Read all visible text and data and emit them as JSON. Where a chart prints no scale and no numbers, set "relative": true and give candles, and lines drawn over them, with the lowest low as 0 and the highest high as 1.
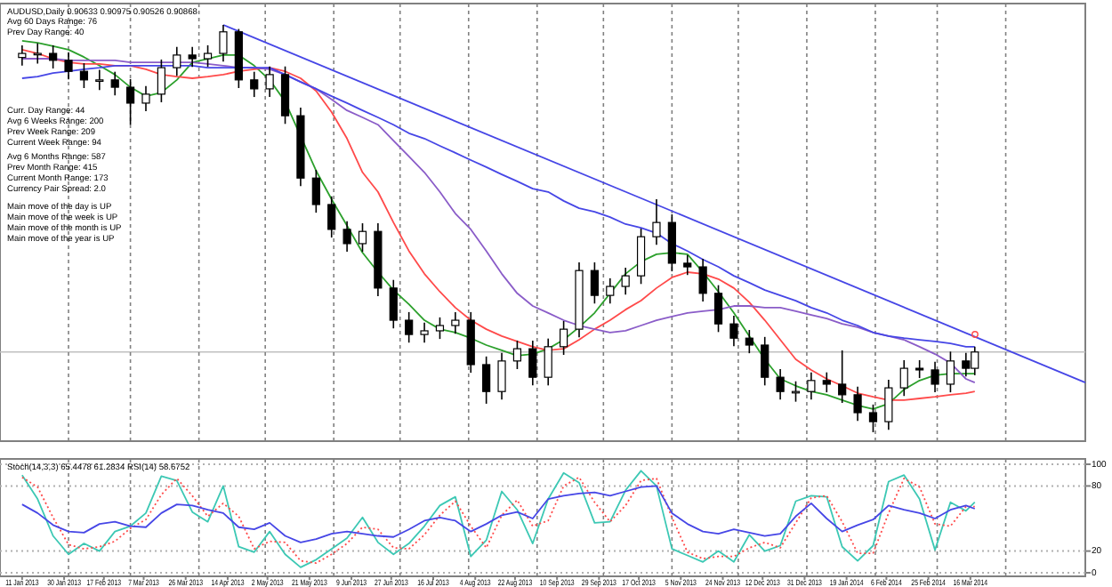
{
  "chart_data": [
    {
      "type": "candlestick",
      "title": "AUDUSD,Daily  0.90633 0.90975 0.90526 0.90868",
      "annotations": [
        "Avg 60 Days Range: 76",
        "Prev Day Range: 40",
        "Curr. Day Range: 44",
        "Avg 6 Weeks Range: 200",
        "Prev Week Range: 209",
        "Current Week Range: 94",
        "Avg 6 Months Range: 587",
        "Prev Month Range: 415",
        "Current Month Range: 173",
        "Currency Pair Spread: 2.0",
        "Main move of the day is UP",
        "Main move of the week is UP",
        "Main move of the month is UP",
        "Main move of the year is UP"
      ],
      "relative": true,
      "xlim": [
        "2013-01-01",
        "2014-05-07"
      ],
      "x": [
        "2013-01-11",
        "2013-01-18",
        "2013-01-25",
        "2013-02-01",
        "2013-02-08",
        "2013-02-15",
        "2013-02-22",
        "2013-03-01",
        "2013-03-08",
        "2013-03-15",
        "2013-03-22",
        "2013-03-29",
        "2013-04-05",
        "2013-04-12",
        "2013-04-19",
        "2013-04-26",
        "2013-05-03",
        "2013-05-10",
        "2013-05-17",
        "2013-05-24",
        "2013-05-31",
        "2013-06-07",
        "2013-06-14",
        "2013-06-21",
        "2013-06-28",
        "2013-07-05",
        "2013-07-12",
        "2013-07-19",
        "2013-07-26",
        "2013-08-02",
        "2013-08-09",
        "2013-08-16",
        "2013-08-23",
        "2013-08-30",
        "2013-09-06",
        "2013-09-13",
        "2013-09-20",
        "2013-09-27",
        "2013-10-04",
        "2013-10-11",
        "2013-10-18",
        "2013-10-25",
        "2013-11-01",
        "2013-11-08",
        "2013-11-15",
        "2013-11-22",
        "2013-11-29",
        "2013-12-06",
        "2013-12-13",
        "2013-12-20",
        "2013-12-27",
        "2014-01-03",
        "2014-01-10",
        "2014-01-17",
        "2014-01-24",
        "2014-01-31",
        "2014-02-07",
        "2014-02-14",
        "2014-02-21",
        "2014-02-28",
        "2014-03-07",
        "2014-03-14",
        "2014-03-18"
      ],
      "ohlc": [
        [
          0.92,
          0.95,
          0.9,
          0.93
        ],
        [
          0.93,
          0.955,
          0.905,
          0.93
        ],
        [
          0.93,
          0.95,
          0.893,
          0.913
        ],
        [
          0.913,
          0.933,
          0.866,
          0.886
        ],
        [
          0.886,
          0.906,
          0.845,
          0.865
        ],
        [
          0.865,
          0.89,
          0.84,
          0.865
        ],
        [
          0.865,
          0.885,
          0.827,
          0.847
        ],
        [
          0.847,
          0.867,
          0.755,
          0.808
        ],
        [
          0.808,
          0.85,
          0.788,
          0.83
        ],
        [
          0.83,
          0.915,
          0.81,
          0.895
        ],
        [
          0.895,
          0.946,
          0.875,
          0.926
        ],
        [
          0.926,
          0.946,
          0.897,
          0.917
        ],
        [
          0.917,
          0.95,
          0.897,
          0.93
        ],
        [
          0.93,
          1.0,
          0.91,
          0.983
        ],
        [
          0.983,
          0.99,
          0.845,
          0.865
        ],
        [
          0.865,
          0.885,
          0.823,
          0.843
        ],
        [
          0.843,
          0.898,
          0.823,
          0.878
        ],
        [
          0.878,
          0.898,
          0.757,
          0.777
        ],
        [
          0.777,
          0.797,
          0.604,
          0.624
        ],
        [
          0.624,
          0.644,
          0.539,
          0.559
        ],
        [
          0.559,
          0.579,
          0.478,
          0.498
        ],
        [
          0.498,
          0.518,
          0.443,
          0.463
        ],
        [
          0.463,
          0.513,
          0.443,
          0.493
        ],
        [
          0.493,
          0.513,
          0.334,
          0.354
        ],
        [
          0.354,
          0.374,
          0.255,
          0.275
        ],
        [
          0.275,
          0.295,
          0.22,
          0.24
        ],
        [
          0.24,
          0.269,
          0.22,
          0.249
        ],
        [
          0.249,
          0.282,
          0.229,
          0.262
        ],
        [
          0.262,
          0.295,
          0.242,
          0.275
        ],
        [
          0.275,
          0.295,
          0.146,
          0.166
        ],
        [
          0.166,
          0.186,
          0.07,
          0.1
        ],
        [
          0.1,
          0.195,
          0.08,
          0.175
        ],
        [
          0.175,
          0.225,
          0.155,
          0.205
        ],
        [
          0.205,
          0.225,
          0.115,
          0.135
        ],
        [
          0.135,
          0.23,
          0.115,
          0.21
        ],
        [
          0.21,
          0.273,
          0.19,
          0.253
        ],
        [
          0.253,
          0.417,
          0.233,
          0.397
        ],
        [
          0.397,
          0.417,
          0.316,
          0.336
        ],
        [
          0.336,
          0.378,
          0.316,
          0.358
        ],
        [
          0.358,
          0.404,
          0.338,
          0.384
        ],
        [
          0.384,
          0.5,
          0.364,
          0.48
        ],
        [
          0.48,
          0.572,
          0.46,
          0.515
        ],
        [
          0.515,
          0.535,
          0.395,
          0.415
        ],
        [
          0.415,
          0.435,
          0.386,
          0.406
        ],
        [
          0.406,
          0.426,
          0.321,
          0.341
        ],
        [
          0.341,
          0.361,
          0.246,
          0.266
        ],
        [
          0.266,
          0.286,
          0.211,
          0.231
        ],
        [
          0.231,
          0.251,
          0.194,
          0.214
        ],
        [
          0.214,
          0.234,
          0.115,
          0.135
        ],
        [
          0.135,
          0.155,
          0.08,
          0.1
        ],
        [
          0.1,
          0.125,
          0.075,
          0.1
        ],
        [
          0.1,
          0.147,
          0.08,
          0.127
        ],
        [
          0.127,
          0.147,
          0.098,
          0.118
        ],
        [
          0.118,
          0.201,
          0.072,
          0.092
        ],
        [
          0.092,
          0.112,
          0.028,
          0.048
        ],
        [
          0.048,
          0.068,
          0,
          0.026
        ],
        [
          0.026,
          0.129,
          0.006,
          0.109
        ],
        [
          0.109,
          0.177,
          0.089,
          0.157
        ],
        [
          0.157,
          0.177,
          0.133,
          0.153
        ],
        [
          0.153,
          0.173,
          0.098,
          0.118
        ],
        [
          0.118,
          0.198,
          0.098,
          0.175
        ],
        [
          0.175,
          0.195,
          0.137,
          0.157
        ],
        [
          0.157,
          0.21,
          0.14,
          0.197
        ]
      ],
      "series": [
        {
          "type": "line",
          "color": "#2ca02c",
          "values": [
            0.961,
            0.956,
            0.948,
            0.939,
            0.921,
            0.9,
            0.878,
            0.847,
            0.825,
            0.834,
            0.865,
            0.908,
            0.917,
            0.926,
            0.926,
            0.9,
            0.865,
            0.812,
            null,
            0.642,
            0.572,
            0.507,
            0.441,
            0.393,
            0.349,
            0.314,
            0.275,
            0.253,
            0.245,
            0.231,
            0.214,
            0.201,
            0.188,
            0.192,
            0.205,
            0.227,
            0.258,
            0.293,
            0.341,
            0.389,
            0.419,
            0.437,
            0.441,
            0.437,
            0.393,
            0.345,
            0.293,
            0.236,
            0.179,
            0.131,
            0.114,
            0.1,
            0.092,
            0.079,
            0.066,
            0.057,
            0.07,
            0.105,
            0.127,
            0.14,
            0.144,
            0.144,
            0.144
          ]
        },
        {
          "type": "line",
          "color": "#ff4a4a",
          "values": [
            0.939,
            0.93,
            0.917,
            0.908,
            0.904,
            0.904,
            0.9,
            0.9,
            0.891,
            0.878,
            0.873,
            0.869,
            0.873,
            0.878,
            0.886,
            0.891,
            0.895,
            0.886,
            0.869,
            0.838,
            0.786,
            0.721,
            0.638,
            0.59,
            0.515,
            0.445,
            0.389,
            0.345,
            0.306,
            0.275,
            0.253,
            0.236,
            0.223,
            0.21,
            0.201,
            0.205,
            0.227,
            0.253,
            0.275,
            0.301,
            0.323,
            0.354,
            0.38,
            0.393,
            0.389,
            0.376,
            0.354,
            0.319,
            0.275,
            0.227,
            0.179,
            0.153,
            0.131,
            0.114,
            0.096,
            0.087,
            0.079,
            0.079,
            0.083,
            0.087,
            0.092,
            0.096,
            0.1
          ]
        },
        {
          "type": "line",
          "color": "#8a5cc8",
          "values": [
            0.917,
            0.917,
            0.917,
            0.913,
            0.913,
            0.913,
            0.913,
            0.908,
            0.908,
            0.908,
            0.908,
            0.908,
            0.904,
            0.9,
            0.895,
            0.895,
            0.891,
            0.878,
            0.86,
            0.843,
            0.817,
            0.79,
            0.773,
            0.755,
            0.716,
            0.677,
            0.638,
            0.59,
            0.537,
            0.498,
            0.445,
            0.389,
            0.341,
            0.31,
            0.293,
            0.275,
            0.262,
            0.253,
            0.245,
            0.249,
            0.262,
            0.275,
            0.284,
            0.293,
            0.297,
            0.301,
            0.31,
            0.31,
            0.306,
            0.306,
            0.297,
            0.288,
            0.279,
            0.266,
            0.258,
            0.245,
            0.236,
            0.227,
            0.21,
            0.192,
            0.17,
            0.131,
            0.122
          ]
        },
        {
          "type": "line",
          "color": "#4646e6",
          "values": [
            0.869,
            0.873,
            0.882,
            0.886,
            0.891,
            0.895,
            0.9,
            0.9,
            0.9,
            0.9,
            0.9,
            0.9,
            0.895,
            0.895,
            0.895,
            0.895,
            0.895,
            0.878,
            0.86,
            0.843,
            0.825,
            0.808,
            0.79,
            0.773,
            0.755,
            0.734,
            0.721,
            0.703,
            0.686,
            0.668,
            0.651,
            0.633,
            0.616,
            0.598,
            0.59,
            0.568,
            0.55,
            0.541,
            0.528,
            0.511,
            0.502,
            0.489,
            0.463,
            0.445,
            0.424,
            0.406,
            0.384,
            0.367,
            0.349,
            0.336,
            0.323,
            0.306,
            0.293,
            0.275,
            0.262,
            0.245,
            0.236,
            0.231,
            0.227,
            0.223,
            0.218,
            0.21,
            0.21
          ]
        },
        {
          "type": "line",
          "color": "#4646e6",
          "x": [
            "2013-04-12",
            "2014-05-07"
          ],
          "values": [
            1.0,
            0.122
          ]
        }
      ],
      "ref_lines": [
        {
          "axis": "y",
          "value": 0.197,
          "color": "#c0c0c0",
          "line_style": "solid"
        },
        {
          "axis": "x",
          "value": "2013-02-01",
          "color": "#808080",
          "line_style": "dashed"
        },
        {
          "axis": "x",
          "value": "2013-03-01",
          "color": "#808080",
          "line_style": "dashed"
        },
        {
          "axis": "x",
          "value": "2013-04-01",
          "color": "#808080",
          "line_style": "dashed"
        },
        {
          "axis": "x",
          "value": "2013-05-01",
          "color": "#808080",
          "line_style": "dashed"
        },
        {
          "axis": "x",
          "value": "2013-06-01",
          "color": "#808080",
          "line_style": "dashed"
        },
        {
          "axis": "x",
          "value": "2013-07-01",
          "color": "#808080",
          "line_style": "dashed"
        },
        {
          "axis": "x",
          "value": "2013-08-01",
          "color": "#808080",
          "line_style": "dashed"
        },
        {
          "axis": "x",
          "value": "2013-09-01",
          "color": "#808080",
          "line_style": "dashed"
        },
        {
          "axis": "x",
          "value": "2013-10-01",
          "color": "#808080",
          "line_style": "dashed"
        },
        {
          "axis": "x",
          "value": "2013-11-01",
          "color": "#808080",
          "line_style": "dashed"
        },
        {
          "axis": "x",
          "value": "2013-12-01",
          "color": "#808080",
          "line_style": "dashed"
        },
        {
          "axis": "x",
          "value": "2014-01-01",
          "color": "#808080",
          "line_style": "dashed"
        },
        {
          "axis": "x",
          "value": "2014-02-01",
          "color": "#808080",
          "line_style": "dashed"
        },
        {
          "axis": "x",
          "value": "2014-03-01",
          "color": "#808080",
          "line_style": "dashed"
        },
        {
          "axis": "x",
          "value": "2014-04-01",
          "color": "#808080",
          "line_style": "dashed"
        }
      ]
    },
    {
      "type": "line",
      "title": "Stoch(14,3,3) 65.4478 61.2834  RSI(14) 58.6752",
      "xlim": [
        "2013-01-01",
        "2014-05-07"
      ],
      "xticks": [
        {
          "value": "2013-01-11",
          "label": "11 Jan 2013"
        },
        {
          "value": "2013-01-30",
          "label": "30 Jan 2013"
        },
        {
          "value": "2013-02-17",
          "label": "17 Feb 2013"
        },
        {
          "value": "2013-03-07",
          "label": "7 Mar 2013"
        },
        {
          "value": "2013-03-26",
          "label": "26 Mar 2013"
        },
        {
          "value": "2013-04-14",
          "label": "14 Apr 2013"
        },
        {
          "value": "2013-05-02",
          "label": "2 May 2013"
        },
        {
          "value": "2013-05-21",
          "label": "21 May 2013"
        },
        {
          "value": "2013-06-09",
          "label": "9 Jun 2013"
        },
        {
          "value": "2013-06-27",
          "label": "27 Jun 2013"
        },
        {
          "value": "2013-07-16",
          "label": "16 Jul 2013"
        },
        {
          "value": "2013-08-04",
          "label": "4 Aug 2013"
        },
        {
          "value": "2013-08-22",
          "label": "22 Aug 2013"
        },
        {
          "value": "2013-09-10",
          "label": "10 Sep 2013"
        },
        {
          "value": "2013-09-29",
          "label": "29 Sep 2013"
        },
        {
          "value": "2013-10-17",
          "label": "17 Oct 2013"
        },
        {
          "value": "2013-11-05",
          "label": "5 Nov 2013"
        },
        {
          "value": "2013-11-24",
          "label": "24 Nov 2013"
        },
        {
          "value": "2013-12-12",
          "label": "12 Dec 2013"
        },
        {
          "value": "2013-12-31",
          "label": "31 Dec 2013"
        },
        {
          "value": "2014-01-19",
          "label": "19 Jan 2014"
        },
        {
          "value": "2014-02-06",
          "label": "6 Feb 2014"
        },
        {
          "value": "2014-02-25",
          "label": "25 Feb 2014"
        },
        {
          "value": "2014-03-16",
          "label": "16 Mar 2014"
        }
      ],
      "ylim": [
        0,
        100
      ],
      "yticks": [
        0,
        20,
        80,
        100
      ],
      "grid": "y",
      "x": [
        "2013-01-11",
        "2013-01-18",
        "2013-01-25",
        "2013-02-01",
        "2013-02-08",
        "2013-02-15",
        "2013-02-22",
        "2013-03-01",
        "2013-03-08",
        "2013-03-15",
        "2013-03-22",
        "2013-03-29",
        "2013-04-05",
        "2013-04-12",
        "2013-04-19",
        "2013-04-26",
        "2013-05-03",
        "2013-05-10",
        "2013-05-17",
        "2013-05-24",
        "2013-05-31",
        "2013-06-07",
        "2013-06-14",
        "2013-06-21",
        "2013-06-28",
        "2013-07-05",
        "2013-07-12",
        "2013-07-19",
        "2013-07-26",
        "2013-08-02",
        "2013-08-09",
        "2013-08-16",
        "2013-08-23",
        "2013-08-30",
        "2013-09-06",
        "2013-09-13",
        "2013-09-20",
        "2013-09-27",
        "2013-10-04",
        "2013-10-11",
        "2013-10-18",
        "2013-10-25",
        "2013-11-01",
        "2013-11-08",
        "2013-11-15",
        "2013-11-22",
        "2013-11-29",
        "2013-12-06",
        "2013-12-13",
        "2013-12-20",
        "2013-12-27",
        "2014-01-03",
        "2014-01-10",
        "2014-01-17",
        "2014-01-24",
        "2014-01-31",
        "2014-02-07",
        "2014-02-14",
        "2014-02-21",
        "2014-02-28",
        "2014-03-07",
        "2014-03-14",
        "2014-03-18"
      ],
      "series": [
        {
          "color": "#3cc8b4",
          "line_style": "solid",
          "values": [
            90,
            68,
            34,
            17,
            27,
            20,
            38,
            43,
            55,
            89,
            85,
            56,
            47,
            80,
            24,
            19,
            38,
            17,
            5,
            12,
            22,
            32,
            51,
            28,
            17,
            27,
            43,
            62,
            70,
            15,
            30,
            75,
            58,
            27,
            68,
            92,
            83,
            46,
            47,
            76,
            94,
            80,
            22,
            16,
            10,
            20,
            10,
            35,
            20,
            25,
            66,
            71,
            70,
            24,
            11,
            25,
            84,
            90,
            68,
            21,
            65,
            57,
            65
          ]
        },
        {
          "color": "#ff4a4a",
          "line_style": "dotted",
          "values": [
            88,
            79,
            51,
            26,
            22,
            24,
            29,
            41,
            49,
            72,
            87,
            71,
            52,
            64,
            52,
            22,
            29,
            28,
            11,
            9,
            17,
            27,
            42,
            40,
            23,
            22,
            35,
            53,
            66,
            43,
            23,
            53,
            67,
            43,
            48,
            80,
            88,
            65,
            47,
            62,
            85,
            87,
            51,
            19,
            13,
            15,
            15,
            23,
            28,
            23,
            46,
            69,
            71,
            47,
            18,
            18,
            55,
            87,
            79,
            45,
            43,
            61,
            61
          ]
        },
        {
          "color": "#4646e6",
          "line_style": "solid",
          "values": [
            63,
            55,
            44,
            38,
            37,
            45,
            47,
            43,
            42,
            55,
            63,
            62,
            58,
            55,
            42,
            40,
            46,
            34,
            28,
            31,
            36,
            38,
            36,
            34,
            33,
            40,
            48,
            51,
            48,
            38,
            45,
            53,
            56,
            50,
            68,
            71,
            73,
            74,
            71,
            75,
            79,
            80,
            55,
            45,
            38,
            36,
            40,
            37,
            34,
            36,
            52,
            64,
            50,
            38,
            44,
            49,
            62,
            58,
            55,
            50,
            58,
            62,
            59
          ]
        }
      ],
      "ref_lines": [
        {
          "axis": "x",
          "value": "2013-02-01",
          "color": "#808080",
          "line_style": "dashed"
        },
        {
          "axis": "x",
          "value": "2013-03-01",
          "color": "#808080",
          "line_style": "dashed"
        },
        {
          "axis": "x",
          "value": "2013-04-01",
          "color": "#808080",
          "line_style": "dashed"
        },
        {
          "axis": "x",
          "value": "2013-05-01",
          "color": "#808080",
          "line_style": "dashed"
        },
        {
          "axis": "x",
          "value": "2013-06-01",
          "color": "#808080",
          "line_style": "dashed"
        },
        {
          "axis": "x",
          "value": "2013-07-01",
          "color": "#808080",
          "line_style": "dashed"
        },
        {
          "axis": "x",
          "value": "2013-08-01",
          "color": "#808080",
          "line_style": "dashed"
        },
        {
          "axis": "x",
          "value": "2013-09-01",
          "color": "#808080",
          "line_style": "dashed"
        },
        {
          "axis": "x",
          "value": "2013-10-01",
          "color": "#808080",
          "line_style": "dashed"
        },
        {
          "axis": "x",
          "value": "2013-11-01",
          "color": "#808080",
          "line_style": "dashed"
        },
        {
          "axis": "x",
          "value": "2013-12-01",
          "color": "#808080",
          "line_style": "dashed"
        },
        {
          "axis": "x",
          "value": "2014-01-01",
          "color": "#808080",
          "line_style": "dashed"
        },
        {
          "axis": "x",
          "value": "2014-02-01",
          "color": "#808080",
          "line_style": "dashed"
        },
        {
          "axis": "x",
          "value": "2014-03-01",
          "color": "#808080",
          "line_style": "dashed"
        },
        {
          "axis": "x",
          "value": "2014-04-01",
          "color": "#808080",
          "line_style": "dashed"
        }
      ]
    }
  ]
}
